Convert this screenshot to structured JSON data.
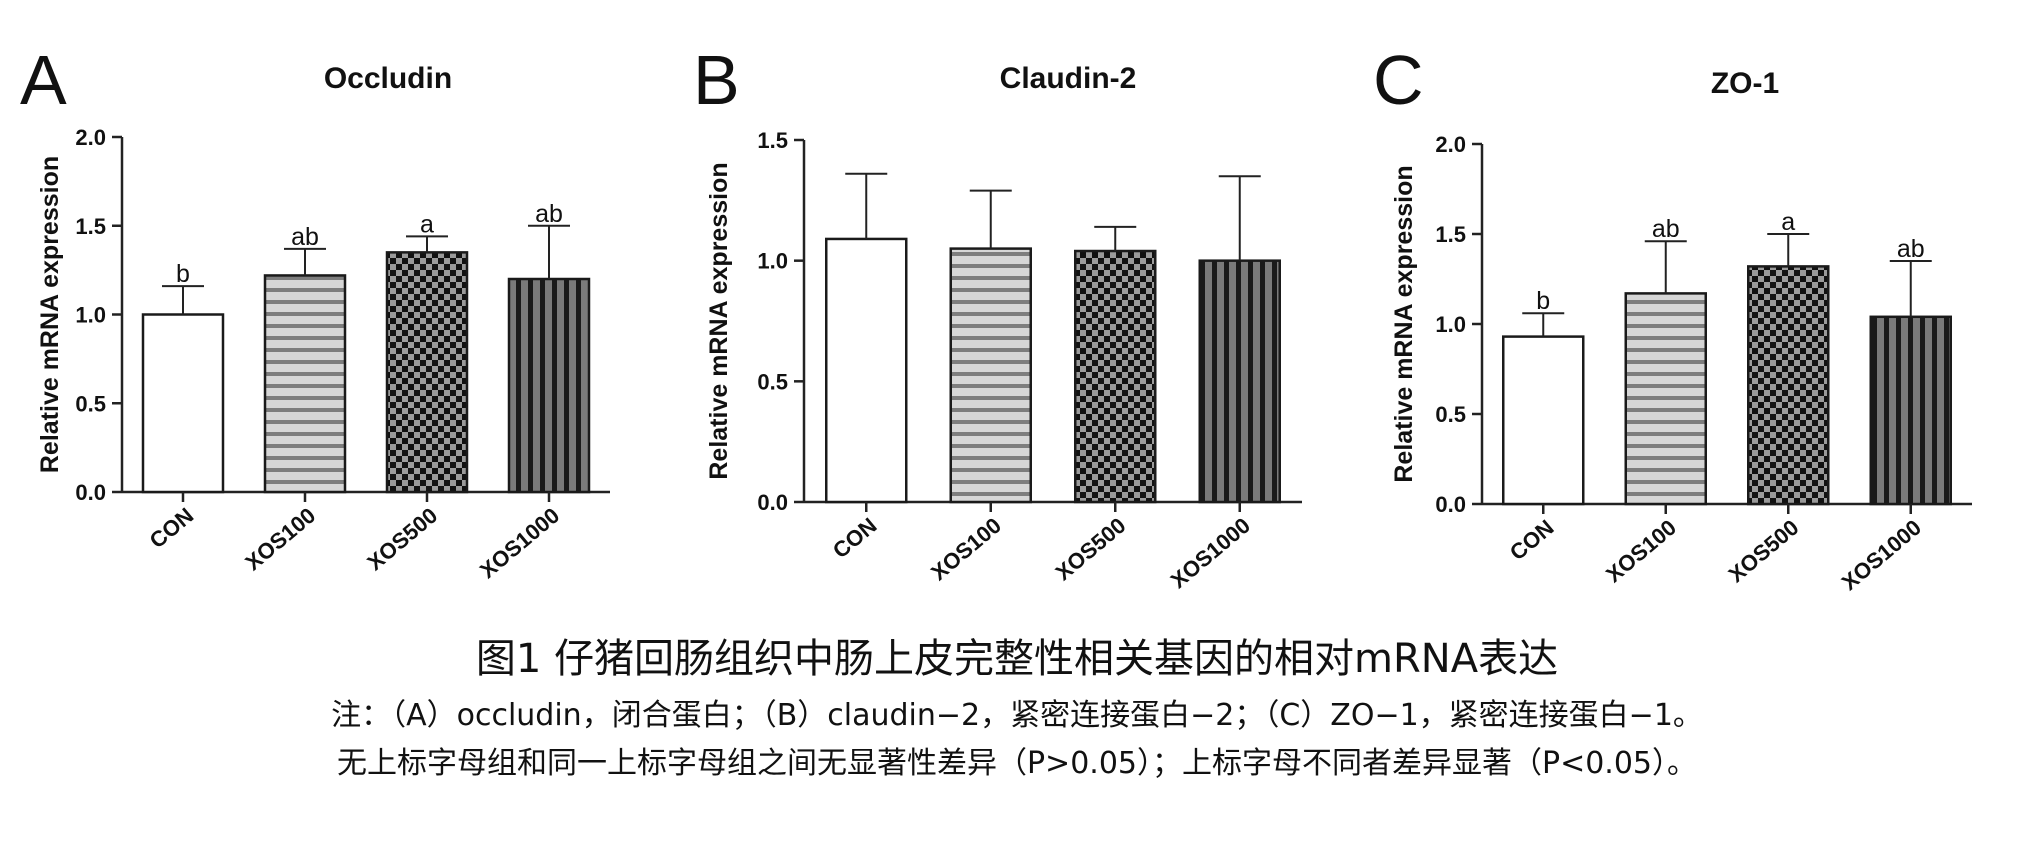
{
  "colors": {
    "axis": "#222222",
    "bar_outline": "#1a1a1a",
    "stripe_gray": "#8a8a8a",
    "stripe_light": "#d6d6d6",
    "checker_dark": "#111111",
    "checker_light": "#9a9a9a",
    "vstripe_dark": "#1a1a1a",
    "vstripe_gray": "#7a7a7a"
  },
  "chart_data": [
    {
      "panel_label": "A",
      "type": "bar",
      "title": "Occludin",
      "ylabel": "Relative mRNA expression",
      "xlabel": "",
      "categories": [
        "CON",
        "XOS100",
        "XOS500",
        "XOS1000"
      ],
      "values": [
        1.0,
        1.22,
        1.35,
        1.2
      ],
      "error": [
        0.16,
        0.15,
        0.09,
        0.3
      ],
      "significance": [
        "b",
        "ab",
        "a",
        "ab"
      ],
      "patterns": [
        "white",
        "hstripe",
        "checker",
        "vstripe"
      ],
      "ylim": [
        0,
        2.0
      ],
      "yticks": [
        "0.0",
        "0.5",
        "1.0",
        "1.5",
        "2.0"
      ]
    },
    {
      "panel_label": "B",
      "type": "bar",
      "title": "Claudin-2",
      "ylabel": "Relative mRNA expression",
      "xlabel": "",
      "categories": [
        "CON",
        "XOS100",
        "XOS500",
        "XOS1000"
      ],
      "values": [
        1.09,
        1.05,
        1.04,
        1.0
      ],
      "error": [
        0.27,
        0.24,
        0.1,
        0.35
      ],
      "significance": [
        "",
        "",
        "",
        ""
      ],
      "patterns": [
        "white",
        "hstripe",
        "checker",
        "vstripe"
      ],
      "ylim": [
        0,
        1.5
      ],
      "yticks": [
        "0.0",
        "0.5",
        "1.0",
        "1.5"
      ]
    },
    {
      "panel_label": "C",
      "type": "bar",
      "title": "ZO-1",
      "ylabel": "Relative mRNA expression",
      "xlabel": "",
      "categories": [
        "CON",
        "XOS100",
        "XOS500",
        "XOS1000"
      ],
      "values": [
        0.93,
        1.17,
        1.32,
        1.04
      ],
      "error": [
        0.13,
        0.29,
        0.18,
        0.31
      ],
      "significance": [
        "b",
        "ab",
        "a",
        "ab"
      ],
      "patterns": [
        "white",
        "hstripe",
        "checker",
        "vstripe"
      ],
      "ylim": [
        0,
        2.0
      ],
      "yticks": [
        "0.0",
        "0.5",
        "1.0",
        "1.5",
        "2.0"
      ]
    }
  ],
  "caption": {
    "title": "图1 仔猪回肠组织中肠上皮完整性相关基因的相对mRNA表达",
    "note_line1": "注：（A）occludin，闭合蛋白；（B）claudin−2，紧密连接蛋白−2；（C）ZO−1，紧密连接蛋白−1。",
    "note_line2": "无上标字母组和同一上标字母组之间无显著性差异（P>0.05）；上标字母不同者差异显著（P<0.05）。"
  }
}
